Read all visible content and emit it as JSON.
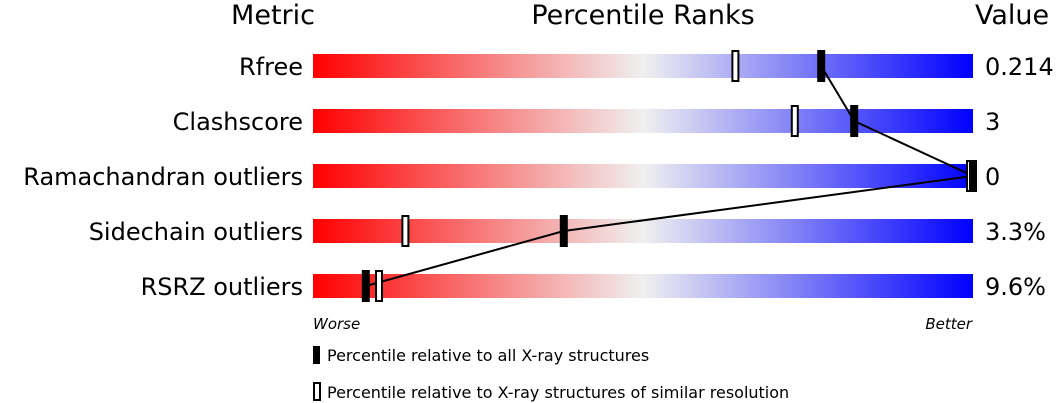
{
  "headers": {
    "metric": "Metric",
    "percentile": "Percentile Ranks",
    "value": "Value"
  },
  "axis": {
    "worse": "Worse",
    "better": "Better"
  },
  "legend": {
    "all": "Percentile relative to all X-ray structures",
    "similar": "Percentile relative to X-ray structures of similar resolution"
  },
  "colors": {
    "worse": "#ff0000",
    "mid": "#f0f0f0",
    "better": "#0000ff"
  },
  "chart_data": {
    "type": "bar",
    "xlabel": "Percentile Ranks",
    "xlim": [
      0,
      100
    ],
    "categories": [
      "Rfree",
      "Clashscore",
      "Ramachandran outliers",
      "Sidechain outliers",
      "RSRZ outliers"
    ],
    "values": [
      "0.214",
      "3",
      "0",
      "3.3%",
      "9.6%"
    ],
    "series": [
      {
        "name": "Percentile relative to all X-ray structures",
        "values": [
          77,
          82,
          100,
          38,
          8
        ]
      },
      {
        "name": "Percentile relative to X-ray structures of similar resolution",
        "values": [
          64,
          73,
          100,
          14,
          10
        ]
      }
    ]
  }
}
